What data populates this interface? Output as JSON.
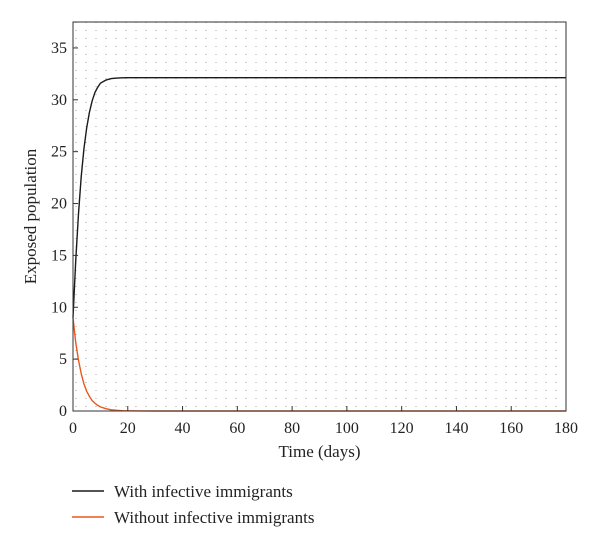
{
  "chart_data": {
    "type": "line",
    "title": "",
    "xlabel": "Time (days)",
    "ylabel": "Exposed population",
    "xlim": [
      0,
      180
    ],
    "ylim": [
      0,
      37.5
    ],
    "xticks": [
      0,
      20,
      40,
      60,
      80,
      100,
      120,
      140,
      160,
      180
    ],
    "yticks": [
      0,
      5,
      10,
      15,
      20,
      25,
      30,
      35
    ],
    "grid": "dotted",
    "legend_position": "below",
    "series": [
      {
        "name": "With infective immigrants",
        "color": "#1a1a1a",
        "x": [
          0,
          1,
          2,
          3,
          4,
          5,
          6,
          7,
          8,
          9,
          10,
          12,
          14,
          16,
          18,
          20,
          25,
          30,
          40,
          60,
          80,
          100,
          120,
          140,
          160,
          180
        ],
        "y": [
          9.0,
          14.5,
          19.0,
          22.6,
          25.3,
          27.3,
          28.8,
          29.9,
          30.7,
          31.2,
          31.6,
          31.9,
          32.05,
          32.1,
          32.12,
          32.13,
          32.13,
          32.13,
          32.13,
          32.13,
          32.13,
          32.13,
          32.13,
          32.13,
          32.13,
          32.13
        ]
      },
      {
        "name": "Without infective immigrants",
        "color": "#e8581c",
        "x": [
          0,
          1,
          2,
          3,
          4,
          5,
          6,
          7,
          8,
          9,
          10,
          12,
          14,
          16,
          18,
          20,
          25,
          30,
          40,
          60,
          80,
          100,
          120,
          140,
          160,
          180
        ],
        "y": [
          9.0,
          6.6,
          4.9,
          3.6,
          2.6,
          1.9,
          1.4,
          1.0,
          0.75,
          0.55,
          0.4,
          0.22,
          0.12,
          0.06,
          0.03,
          0.02,
          0.005,
          0.0,
          0.0,
          0.0,
          0.0,
          0.0,
          0.0,
          0.0,
          0.0,
          0.0
        ]
      }
    ]
  }
}
